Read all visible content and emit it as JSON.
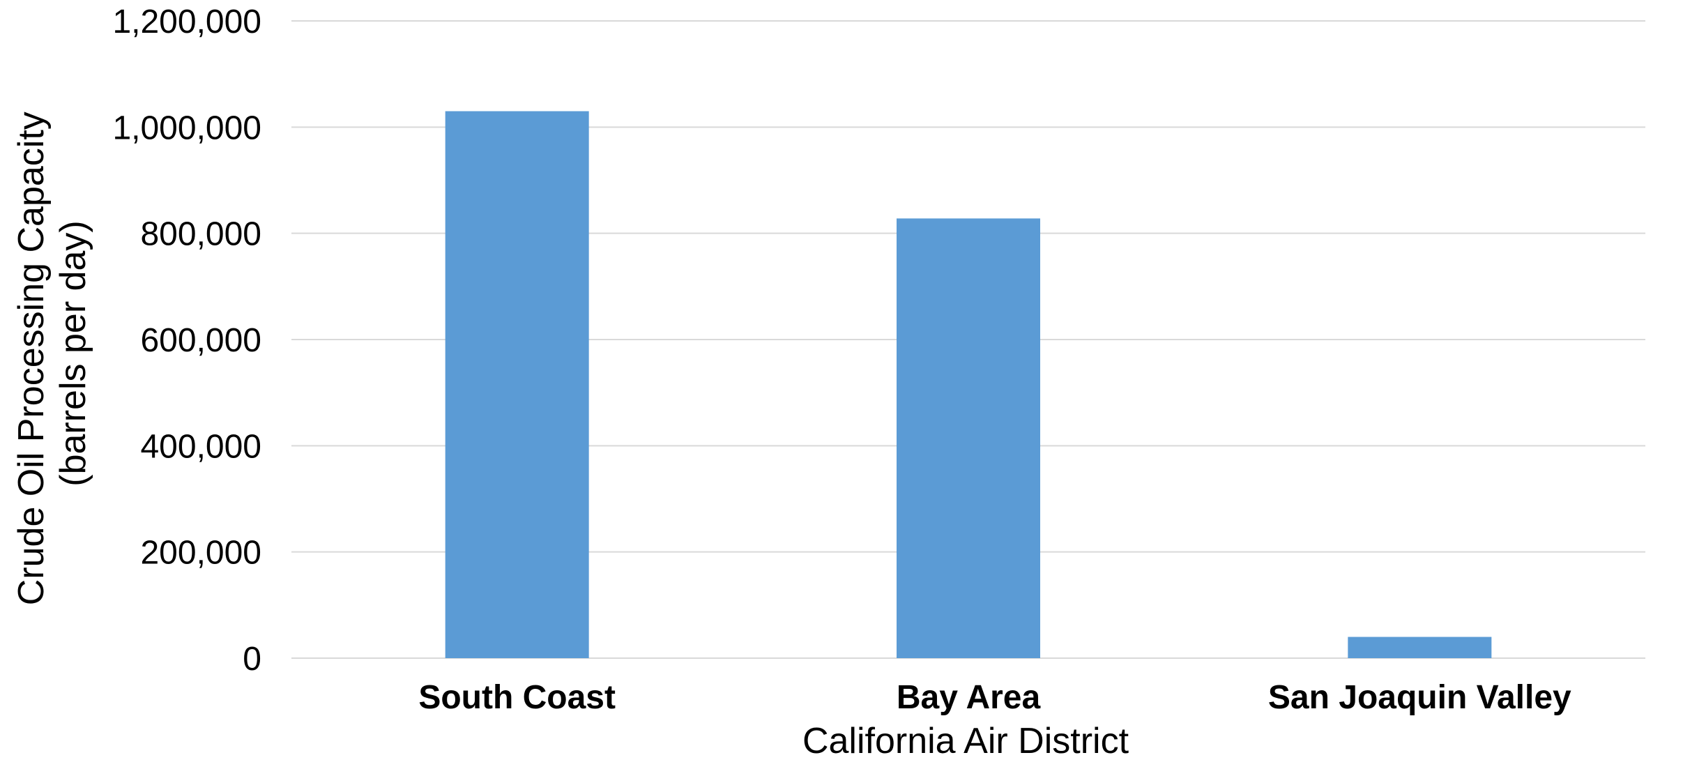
{
  "chart_data": {
    "type": "bar",
    "title": "",
    "categories": [
      "South Coast",
      "Bay Area",
      "San Joaquin Valley"
    ],
    "values": [
      1030000,
      828000,
      40000
    ],
    "xlabel": "California Air District",
    "ylabel_lines": [
      "Crude Oil Processing Capacity",
      "(barrels per day)"
    ],
    "ylim": [
      0,
      1200000
    ],
    "yticks": [
      0,
      200000,
      400000,
      600000,
      800000,
      1000000,
      1200000
    ],
    "ytick_labels": [
      "0",
      "200,000",
      "400,000",
      "600,000",
      "800,000",
      "1,000,000",
      "1,200,000"
    ],
    "grid": true,
    "legend": "none",
    "colors": {
      "bar": "#5B9BD5",
      "grid": "#D9D9D9",
      "text": "#000000"
    }
  }
}
